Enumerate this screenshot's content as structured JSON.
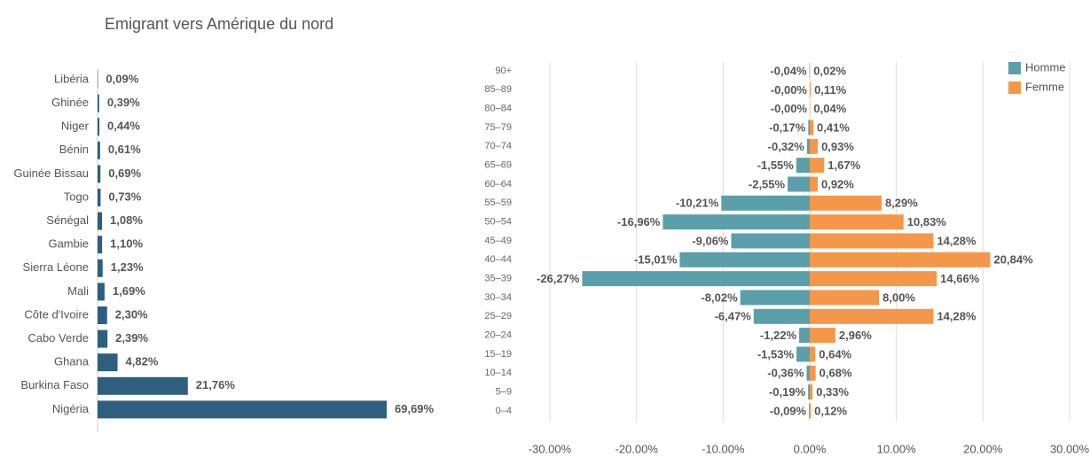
{
  "chart_data": [
    {
      "type": "hbar",
      "title": "Emigrant vers Amérique du nord",
      "color": "#2e5f7f",
      "categories": [
        "Libéria",
        "Ghinée",
        "Niger",
        "Bénin",
        "Guinée Bissau",
        "Togo",
        "Sénégal",
        "Gambie",
        "Sierra Léone",
        "Mali",
        "Côte d'Ivoire",
        "Cabo Verde",
        "Ghana",
        "Burkina Faso",
        "Nigéria"
      ],
      "values": [
        0.09,
        0.39,
        0.44,
        0.61,
        0.69,
        0.73,
        1.08,
        1.1,
        1.23,
        1.69,
        2.3,
        2.39,
        4.82,
        21.76,
        69.69
      ],
      "value_labels": [
        "0,09%",
        "0,39%",
        "0,44%",
        "0,61%",
        "0,69%",
        "0,73%",
        "1,08%",
        "1,10%",
        "1,23%",
        "1,69%",
        "2,30%",
        "2,39%",
        "4,82%",
        "21,76%",
        "69,69%"
      ]
    },
    {
      "type": "pyramid",
      "legend": "top-right",
      "grid": true,
      "categories": [
        "90+",
        "85–89",
        "80–84",
        "75–79",
        "70–74",
        "65–69",
        "60–64",
        "55–59",
        "50–54",
        "45–49",
        "40–44",
        "35–39",
        "30–34",
        "25–29",
        "20–24",
        "15–19",
        "10–14",
        "5–9",
        "0–4"
      ],
      "series": [
        {
          "name": "Homme",
          "color": "#5a9faa",
          "values": [
            -0.04,
            -0.0,
            -0.0,
            -0.17,
            -0.32,
            -1.55,
            -2.55,
            -10.21,
            -16.96,
            -9.06,
            -15.01,
            -26.27,
            -8.02,
            -6.47,
            -1.22,
            -1.53,
            -0.36,
            -0.19,
            -0.09
          ],
          "value_labels": [
            "-0,04%",
            "-0,00%",
            "-0,00%",
            "-0,17%",
            "-0,32%",
            "-1,55%",
            "-2,55%",
            "-10,21%",
            "-16,96%",
            "-9,06%",
            "-15,01%",
            "-26,27%",
            "-8,02%",
            "-6,47%",
            "-1,22%",
            "-1,53%",
            "-0,36%",
            "-0,19%",
            "-0,09%"
          ]
        },
        {
          "name": "Femme",
          "color": "#f5974a",
          "values": [
            0.02,
            0.11,
            0.04,
            0.41,
            0.93,
            1.67,
            0.92,
            8.29,
            10.83,
            14.28,
            20.84,
            14.66,
            8.0,
            14.28,
            2.96,
            0.64,
            0.68,
            0.33,
            0.12
          ],
          "value_labels": [
            "0,02%",
            "0,11%",
            "0,04%",
            "0,41%",
            "0,93%",
            "1,67%",
            "0,92%",
            "8,29%",
            "10,83%",
            "14,28%",
            "20,84%",
            "14,66%",
            "8,00%",
            "14,28%",
            "2,96%",
            "0,64%",
            "0,68%",
            "0,33%",
            "0,12%"
          ]
        }
      ],
      "xlim": [
        -30,
        30
      ],
      "xticks": [
        {
          "value": -30,
          "label": "-30.00%"
        },
        {
          "value": -20,
          "label": "-20.00%"
        },
        {
          "value": -10,
          "label": "-10.00%"
        },
        {
          "value": 0,
          "label": "0.00%"
        },
        {
          "value": 10,
          "label": "10.00%"
        },
        {
          "value": 20,
          "label": "20.00%"
        },
        {
          "value": 30,
          "label": "30.00%"
        }
      ]
    }
  ]
}
